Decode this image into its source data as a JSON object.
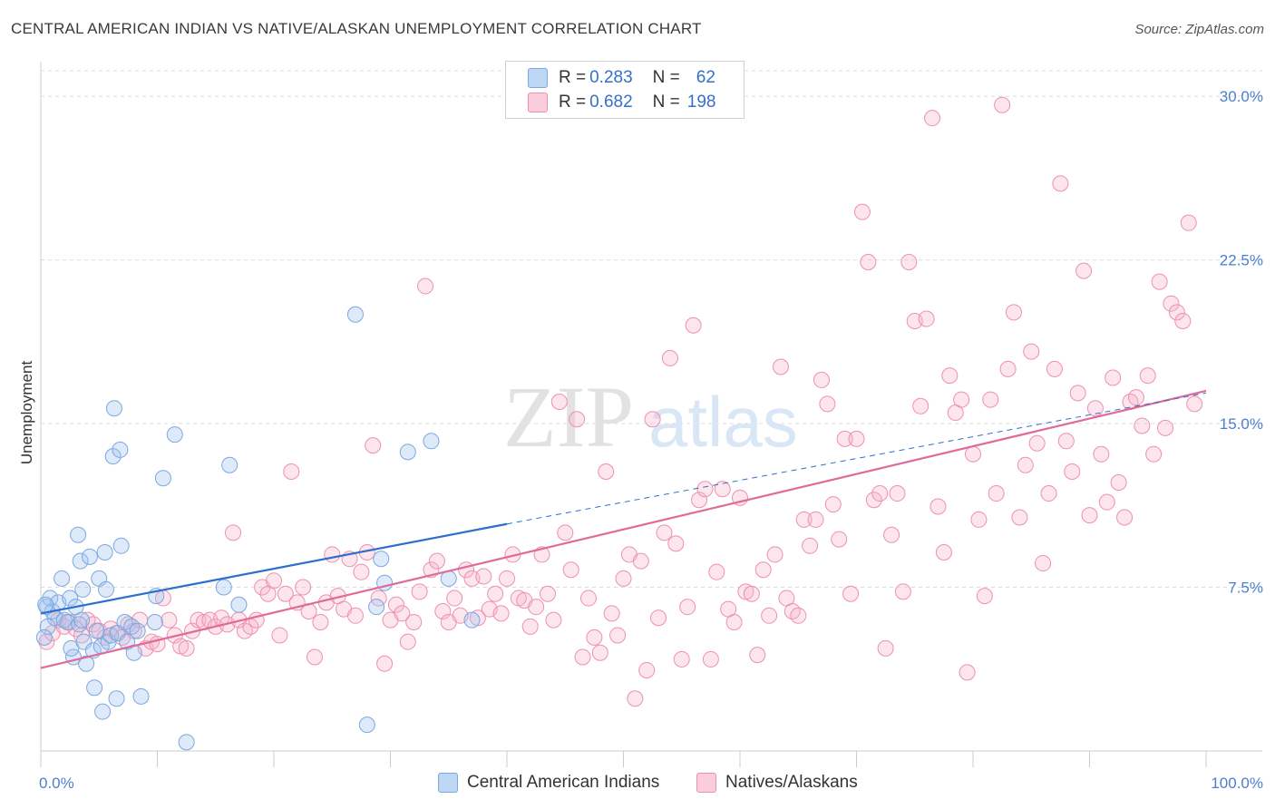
{
  "title": "CENTRAL AMERICAN INDIAN VS NATIVE/ALASKAN UNEMPLOYMENT CORRELATION CHART",
  "source": "Source: ZipAtlas.com",
  "watermark": {
    "zip": "ZIP",
    "atlas": "atlas"
  },
  "legend_top": [
    {
      "r_label": "R =",
      "r": "0.283",
      "n_label": "N =",
      "n": "62",
      "color": "#a8c8f0"
    },
    {
      "r_label": "R =",
      "r": "0.682",
      "n_label": "N =",
      "n": "198",
      "color": "#f5b8cc"
    }
  ],
  "chart_data": {
    "type": "scatter",
    "title": "CENTRAL AMERICAN INDIAN VS NATIVE/ALASKAN UNEMPLOYMENT CORRELATION CHART",
    "xlabel": "",
    "ylabel": "Unemployment",
    "xlim": [
      0,
      100
    ],
    "ylim": [
      0,
      31.5
    ],
    "x_tick_labels": [
      "0.0%",
      "100.0%"
    ],
    "y_ticks": [
      7.5,
      15.0,
      22.5,
      30.0
    ],
    "y_tick_labels": [
      "7.5%",
      "15.0%",
      "22.5%",
      "30.0%"
    ],
    "grid": "dashed horizontal",
    "series": [
      {
        "name": "Central American Indians",
        "color": "#7aa8e0",
        "fill": "rgba(160,195,240,0.35)",
        "trend": {
          "x0": 0,
          "y0": 6.3,
          "x1": 40,
          "y1": 10.4,
          "dashed_to": [
            100,
            16.4
          ],
          "color": "#2e6fcc"
        },
        "points": [
          [
            0.5,
            6.6
          ],
          [
            1.0,
            6.4
          ],
          [
            0.8,
            7.0
          ],
          [
            1.2,
            6.1
          ],
          [
            0.6,
            5.7
          ],
          [
            1.5,
            6.8
          ],
          [
            2.0,
            6.0
          ],
          [
            1.8,
            7.9
          ],
          [
            2.3,
            5.9
          ],
          [
            2.5,
            7.0
          ],
          [
            2.8,
            4.3
          ],
          [
            2.6,
            4.7
          ],
          [
            3.0,
            6.6
          ],
          [
            3.3,
            5.8
          ],
          [
            3.5,
            6.0
          ],
          [
            3.2,
            9.9
          ],
          [
            3.4,
            8.7
          ],
          [
            3.6,
            7.4
          ],
          [
            3.7,
            5.0
          ],
          [
            3.9,
            4.0
          ],
          [
            4.2,
            8.9
          ],
          [
            4.5,
            4.6
          ],
          [
            4.6,
            2.9
          ],
          [
            4.8,
            5.5
          ],
          [
            5.0,
            7.9
          ],
          [
            5.2,
            4.8
          ],
          [
            5.3,
            1.8
          ],
          [
            5.5,
            9.1
          ],
          [
            5.6,
            7.4
          ],
          [
            5.8,
            5.0
          ],
          [
            6.0,
            5.3
          ],
          [
            6.2,
            13.5
          ],
          [
            6.3,
            15.7
          ],
          [
            6.5,
            2.4
          ],
          [
            6.6,
            5.4
          ],
          [
            6.8,
            13.8
          ],
          [
            6.9,
            9.4
          ],
          [
            7.2,
            5.9
          ],
          [
            7.4,
            5.0
          ],
          [
            7.8,
            5.7
          ],
          [
            8.0,
            4.5
          ],
          [
            8.3,
            5.5
          ],
          [
            8.6,
            2.5
          ],
          [
            9.8,
            5.9
          ],
          [
            9.9,
            7.1
          ],
          [
            10.5,
            12.5
          ],
          [
            11.5,
            14.5
          ],
          [
            12.5,
            0.4
          ],
          [
            15.7,
            7.5
          ],
          [
            16.2,
            13.1
          ],
          [
            17.0,
            6.7
          ],
          [
            27.0,
            20.0
          ],
          [
            28.0,
            1.2
          ],
          [
            28.8,
            6.6
          ],
          [
            29.2,
            8.8
          ],
          [
            29.5,
            7.7
          ],
          [
            31.5,
            13.7
          ],
          [
            33.5,
            14.2
          ],
          [
            35.0,
            7.9
          ],
          [
            37.0,
            6.0
          ],
          [
            0.3,
            5.2
          ],
          [
            0.4,
            6.7
          ]
        ]
      },
      {
        "name": "Natives/Alaskans",
        "color": "#ee90b0",
        "fill": "rgba(245,180,200,0.35)",
        "trend": {
          "x0": 0,
          "y0": 3.8,
          "x1": 100,
          "y1": 16.5,
          "color": "#e06a9a"
        },
        "points": [
          [
            0.5,
            5.0
          ],
          [
            1.0,
            5.4
          ],
          [
            1.5,
            6.0
          ],
          [
            2.0,
            5.7
          ],
          [
            2.5,
            5.9
          ],
          [
            3.0,
            5.6
          ],
          [
            3.5,
            5.3
          ],
          [
            4.0,
            6.0
          ],
          [
            4.5,
            5.8
          ],
          [
            5.0,
            5.5
          ],
          [
            5.5,
            5.2
          ],
          [
            6.0,
            5.6
          ],
          [
            6.5,
            5.4
          ],
          [
            7.0,
            5.2
          ],
          [
            7.5,
            5.8
          ],
          [
            8.0,
            5.5
          ],
          [
            8.5,
            6.0
          ],
          [
            9.0,
            4.7
          ],
          [
            9.5,
            5.0
          ],
          [
            10.0,
            4.9
          ],
          [
            10.5,
            7.0
          ],
          [
            11.0,
            6.0
          ],
          [
            11.5,
            5.3
          ],
          [
            12.0,
            4.8
          ],
          [
            12.5,
            4.7
          ],
          [
            13.0,
            5.5
          ],
          [
            13.5,
            6.0
          ],
          [
            14.0,
            5.9
          ],
          [
            14.5,
            6.0
          ],
          [
            15.0,
            5.7
          ],
          [
            15.5,
            6.1
          ],
          [
            16.0,
            5.8
          ],
          [
            16.5,
            10.0
          ],
          [
            17.0,
            6.0
          ],
          [
            17.5,
            5.5
          ],
          [
            18.0,
            5.7
          ],
          [
            18.5,
            6.0
          ],
          [
            19.0,
            7.5
          ],
          [
            19.5,
            7.2
          ],
          [
            20.0,
            7.8
          ],
          [
            20.5,
            5.3
          ],
          [
            21.0,
            7.2
          ],
          [
            21.5,
            12.8
          ],
          [
            22.0,
            6.8
          ],
          [
            22.5,
            7.5
          ],
          [
            23.0,
            6.4
          ],
          [
            23.5,
            4.3
          ],
          [
            24.0,
            5.9
          ],
          [
            24.5,
            6.8
          ],
          [
            25.0,
            9.0
          ],
          [
            25.5,
            7.1
          ],
          [
            26.0,
            6.5
          ],
          [
            26.5,
            8.8
          ],
          [
            27.0,
            6.2
          ],
          [
            27.5,
            8.2
          ],
          [
            28.0,
            9.1
          ],
          [
            28.5,
            14.0
          ],
          [
            29.0,
            7.0
          ],
          [
            29.5,
            4.0
          ],
          [
            30.0,
            6.0
          ],
          [
            30.5,
            6.7
          ],
          [
            31.0,
            6.3
          ],
          [
            31.5,
            5.0
          ],
          [
            32.0,
            5.9
          ],
          [
            32.5,
            7.3
          ],
          [
            33.0,
            21.3
          ],
          [
            33.5,
            8.3
          ],
          [
            34.0,
            8.7
          ],
          [
            34.5,
            6.4
          ],
          [
            35.0,
            5.9
          ],
          [
            35.5,
            7.0
          ],
          [
            36.0,
            6.2
          ],
          [
            36.5,
            8.3
          ],
          [
            37.0,
            7.9
          ],
          [
            37.5,
            6.1
          ],
          [
            38.0,
            8.0
          ],
          [
            38.5,
            6.5
          ],
          [
            39.0,
            7.2
          ],
          [
            39.5,
            6.3
          ],
          [
            40.0,
            7.9
          ],
          [
            40.5,
            9.0
          ],
          [
            41.0,
            7.0
          ],
          [
            41.5,
            6.9
          ],
          [
            42.0,
            5.7
          ],
          [
            42.5,
            6.6
          ],
          [
            43.0,
            9.0
          ],
          [
            43.5,
            7.2
          ],
          [
            44.0,
            6.0
          ],
          [
            44.5,
            16.0
          ],
          [
            45.0,
            10.0
          ],
          [
            45.5,
            8.3
          ],
          [
            46.0,
            15.2
          ],
          [
            46.5,
            4.3
          ],
          [
            47.0,
            7.0
          ],
          [
            47.5,
            5.2
          ],
          [
            48.0,
            4.5
          ],
          [
            48.5,
            12.8
          ],
          [
            49.0,
            6.3
          ],
          [
            49.5,
            5.3
          ],
          [
            50.0,
            7.9
          ],
          [
            50.5,
            9.0
          ],
          [
            51.0,
            2.4
          ],
          [
            51.5,
            8.7
          ],
          [
            52.0,
            3.7
          ],
          [
            52.5,
            15.2
          ],
          [
            53.0,
            6.1
          ],
          [
            53.5,
            10.0
          ],
          [
            54.0,
            18.0
          ],
          [
            54.5,
            9.5
          ],
          [
            55.0,
            4.2
          ],
          [
            55.5,
            6.6
          ],
          [
            56.0,
            19.5
          ],
          [
            56.5,
            11.5
          ],
          [
            57.0,
            12.0
          ],
          [
            57.5,
            4.2
          ],
          [
            58.0,
            8.2
          ],
          [
            58.5,
            12.0
          ],
          [
            59.0,
            6.5
          ],
          [
            59.5,
            5.9
          ],
          [
            60.0,
            11.6
          ],
          [
            60.5,
            7.3
          ],
          [
            61.0,
            7.2
          ],
          [
            61.5,
            4.4
          ],
          [
            62.0,
            8.3
          ],
          [
            62.5,
            6.2
          ],
          [
            63.0,
            9.0
          ],
          [
            63.5,
            17.6
          ],
          [
            64.0,
            7.0
          ],
          [
            64.5,
            6.4
          ],
          [
            65.0,
            6.2
          ],
          [
            65.5,
            10.6
          ],
          [
            66.0,
            9.4
          ],
          [
            66.5,
            10.6
          ],
          [
            67.0,
            17.0
          ],
          [
            67.5,
            15.9
          ],
          [
            68.0,
            11.3
          ],
          [
            68.5,
            9.7
          ],
          [
            69.0,
            14.3
          ],
          [
            69.5,
            7.2
          ],
          [
            70.0,
            14.3
          ],
          [
            70.5,
            24.7
          ],
          [
            71.0,
            22.4
          ],
          [
            71.5,
            11.5
          ],
          [
            72.0,
            11.8
          ],
          [
            72.5,
            4.7
          ],
          [
            73.0,
            9.9
          ],
          [
            73.5,
            11.8
          ],
          [
            74.0,
            7.3
          ],
          [
            74.5,
            22.4
          ],
          [
            75.0,
            19.7
          ],
          [
            75.5,
            15.8
          ],
          [
            76.0,
            19.8
          ],
          [
            76.5,
            29.0
          ],
          [
            77.0,
            11.2
          ],
          [
            77.5,
            9.1
          ],
          [
            78.0,
            17.2
          ],
          [
            78.5,
            15.5
          ],
          [
            79.0,
            16.1
          ],
          [
            79.5,
            3.6
          ],
          [
            80.0,
            13.6
          ],
          [
            80.5,
            10.6
          ],
          [
            81.0,
            7.1
          ],
          [
            81.5,
            16.1
          ],
          [
            82.0,
            11.8
          ],
          [
            82.5,
            29.6
          ],
          [
            83.0,
            17.5
          ],
          [
            83.5,
            20.1
          ],
          [
            84.0,
            10.7
          ],
          [
            84.5,
            13.1
          ],
          [
            85.0,
            18.3
          ],
          [
            85.5,
            14.1
          ],
          [
            86.0,
            8.6
          ],
          [
            86.5,
            11.8
          ],
          [
            87.0,
            17.5
          ],
          [
            87.5,
            26.0
          ],
          [
            88.0,
            14.2
          ],
          [
            88.5,
            12.8
          ],
          [
            89.0,
            16.4
          ],
          [
            89.5,
            22.0
          ],
          [
            90.0,
            10.8
          ],
          [
            90.5,
            15.7
          ],
          [
            91.0,
            13.6
          ],
          [
            91.5,
            11.4
          ],
          [
            92.0,
            17.1
          ],
          [
            92.5,
            12.3
          ],
          [
            93.0,
            10.7
          ],
          [
            93.5,
            16.0
          ],
          [
            94.0,
            16.2
          ],
          [
            94.5,
            14.9
          ],
          [
            95.0,
            17.2
          ],
          [
            95.5,
            13.6
          ],
          [
            96.0,
            21.5
          ],
          [
            96.5,
            14.8
          ],
          [
            97.0,
            20.5
          ],
          [
            97.5,
            20.1
          ],
          [
            98.0,
            19.7
          ],
          [
            98.5,
            24.2
          ],
          [
            99.0,
            15.9
          ]
        ]
      }
    ]
  },
  "legend_bottom": [
    {
      "label": "Central American Indians",
      "color": "#a8c8f0"
    },
    {
      "label": "Natives/Alaskans",
      "color": "#f5b8cc"
    }
  ]
}
